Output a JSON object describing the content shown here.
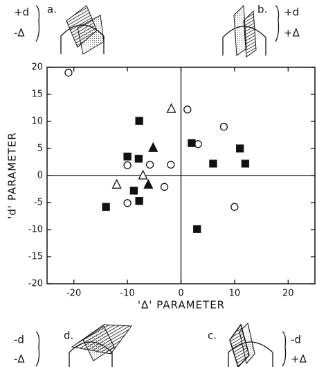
{
  "chart_data": {
    "type": "scatter",
    "x_label": "'Δ' PARAMETER",
    "y_label": "'d' PARAMETER",
    "xlim": [
      -25,
      25
    ],
    "ylim": [
      -20,
      20
    ],
    "xticks": [
      -20,
      -10,
      0,
      10,
      20
    ],
    "yticks": [
      -20,
      -15,
      -10,
      -5,
      0,
      5,
      10,
      15,
      20
    ],
    "series": [
      {
        "marker": "circle",
        "filled": false,
        "color": "#111",
        "x": [
          -21,
          1.2,
          3.2,
          8,
          10,
          -10,
          -5.8,
          -1.9,
          -3.1,
          -10
        ],
        "values": [
          19,
          12.2,
          5.8,
          9,
          -5.8,
          1.9,
          2,
          2,
          -2.1,
          -5.1
        ]
      },
      {
        "marker": "square",
        "filled": true,
        "color": "#111",
        "x": [
          2,
          6,
          11,
          12,
          3,
          -7.8,
          -10,
          -7.9,
          -8.8,
          -7.8,
          -14
        ],
        "values": [
          6,
          2.2,
          5,
          2.2,
          -9.9,
          10.1,
          3.5,
          3.1,
          -2.8,
          -4.7,
          -5.8
        ]
      },
      {
        "marker": "triangle",
        "filled": false,
        "color": "#111",
        "x": [
          -1.8,
          -7.1,
          -12
        ],
        "values": [
          12.3,
          0,
          -1.7
        ]
      },
      {
        "marker": "triangle",
        "filled": true,
        "color": "#111",
        "x": [
          -5.2,
          -6.1
        ],
        "values": [
          5.1,
          -1.7
        ]
      }
    ]
  },
  "panels": [
    {
      "label": "a.",
      "signs": [
        "+d",
        "-Δ"
      ]
    },
    {
      "label": "b.",
      "signs": [
        "+d",
        "+Δ"
      ]
    },
    {
      "label": "c.",
      "signs": [
        "-d",
        "+Δ"
      ]
    },
    {
      "label": "d.",
      "signs": [
        "-d",
        "-Δ"
      ]
    }
  ]
}
